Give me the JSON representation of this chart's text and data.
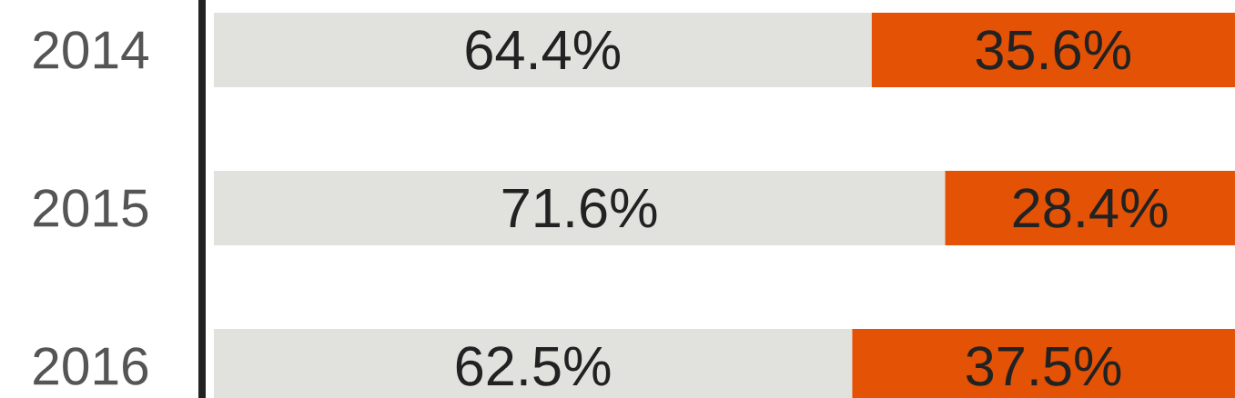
{
  "chart_data": {
    "type": "bar",
    "orientation": "horizontal",
    "stacked": true,
    "categories": [
      "2014",
      "2015",
      "2016"
    ],
    "series": [
      {
        "color": "#e1e2de",
        "values": [
          64.4,
          71.6,
          62.5
        ],
        "value_labels": [
          "64.4%",
          "71.6%",
          "62.5%"
        ]
      },
      {
        "color": "#e35205",
        "values": [
          35.6,
          28.4,
          37.5
        ],
        "value_labels": [
          "35.6%",
          "28.4%",
          "37.5%"
        ]
      }
    ]
  }
}
